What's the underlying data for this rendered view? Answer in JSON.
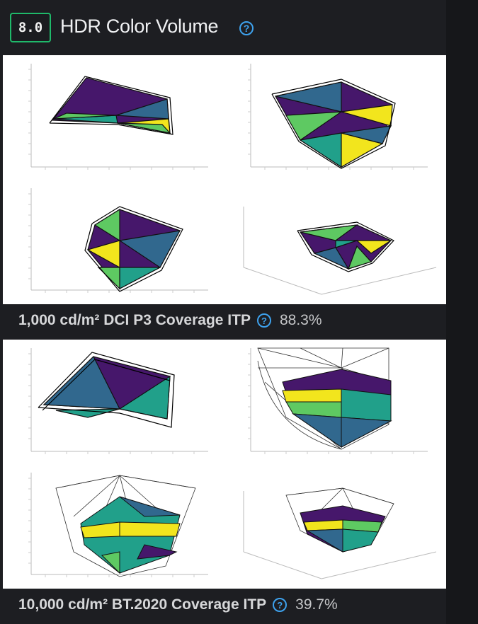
{
  "header": {
    "score": "8.0",
    "title": "HDR Color Volume",
    "help_icon": "?"
  },
  "sections": [
    {
      "caption": "1,000 cd/m² DCI P3 Coverage ITP",
      "value": "88.3%",
      "help_icon": "?"
    },
    {
      "caption": "10,000 cd/m² BT.2020 Coverage ITP",
      "value": "39.7%",
      "help_icon": "?"
    }
  ],
  "colors": {
    "score_border": "#1fb96a",
    "help_accent": "#3ea2ee",
    "viridis_purple": "#46176b",
    "viridis_blue": "#31688e",
    "viridis_teal": "#21a08a",
    "viridis_green": "#5ec962",
    "viridis_yellow": "#f2e51d"
  }
}
